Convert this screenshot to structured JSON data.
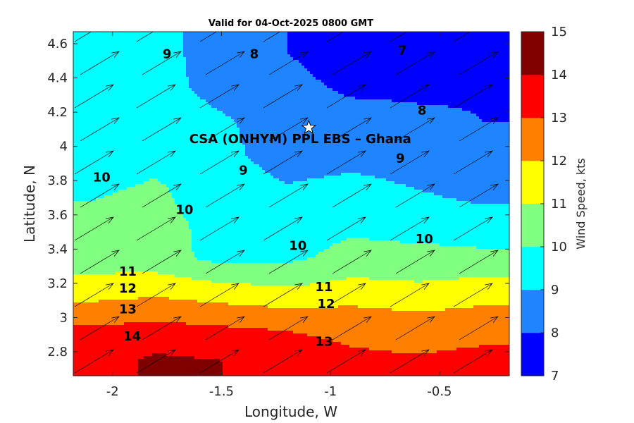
{
  "chart_data": {
    "type": "heatmap",
    "subtype": "filled-contour-with-wind-vectors",
    "title": "Valid for 04-Oct-2025 0800 GMT",
    "xlabel": "Longitude, W",
    "ylabel": "Latitude, N",
    "xlim": [
      -2.18,
      -0.18
    ],
    "ylim": [
      2.66,
      4.67
    ],
    "xticks": [
      -2,
      -1.5,
      -1,
      -0.5
    ],
    "xtick_labels": [
      "-2",
      "-1.5",
      "-1",
      "-0.5"
    ],
    "yticks": [
      2.8,
      3,
      3.2,
      3.4,
      3.6,
      3.8,
      4,
      4.2,
      4.4,
      4.6
    ],
    "ytick_labels": [
      "2.8",
      "3",
      "3.2",
      "3.4",
      "3.6",
      "3.8",
      "4",
      "4.2",
      "4.4",
      "4.6"
    ],
    "grid": false,
    "colorbar": {
      "label": "Wind Speed, kts",
      "position": "right",
      "levels": [
        7,
        8,
        9,
        10,
        11,
        12,
        13,
        14,
        15
      ],
      "level_labels": [
        "7",
        "8",
        "9",
        "10",
        "11",
        "12",
        "13",
        "14",
        "15"
      ],
      "colors": [
        "#0000ff",
        "#1e84ff",
        "#00ffff",
        "#80ff80",
        "#ffff00",
        "#ff8000",
        "#ff0000",
        "#800000"
      ]
    },
    "contour_labels": [
      {
        "text": "7",
        "x": -0.67,
        "y": 4.56
      },
      {
        "text": "8",
        "x": -1.35,
        "y": 4.54
      },
      {
        "text": "8",
        "x": -0.58,
        "y": 4.21
      },
      {
        "text": "9",
        "x": -1.75,
        "y": 4.54
      },
      {
        "text": "9",
        "x": -1.4,
        "y": 3.86
      },
      {
        "text": "9",
        "x": -0.68,
        "y": 3.93
      },
      {
        "text": "10",
        "x": -2.05,
        "y": 3.82
      },
      {
        "text": "10",
        "x": -1.67,
        "y": 3.63
      },
      {
        "text": "10",
        "x": -1.15,
        "y": 3.42
      },
      {
        "text": "10",
        "x": -0.57,
        "y": 3.46
      },
      {
        "text": "11",
        "x": -1.93,
        "y": 3.27
      },
      {
        "text": "11",
        "x": -1.03,
        "y": 3.18
      },
      {
        "text": "12",
        "x": -1.93,
        "y": 3.17
      },
      {
        "text": "12",
        "x": -1.02,
        "y": 3.08
      },
      {
        "text": "13",
        "x": -1.93,
        "y": 3.05
      },
      {
        "text": "13",
        "x": -1.03,
        "y": 2.86
      },
      {
        "text": "14",
        "x": -1.91,
        "y": 2.89
      }
    ],
    "site": {
      "name": "CSA (ONHYM) PPL EBS  – Ghana",
      "lon": -1.1,
      "lat": 4.11
    },
    "wind_direction": "toward north-east (from south-west)",
    "speed_grid": {
      "lon": [
        -2.1,
        -1.8,
        -1.5,
        -1.2,
        -0.9,
        -0.6,
        -0.3
      ],
      "lat": [
        2.75,
        2.95,
        3.15,
        3.35,
        3.55,
        3.75,
        3.95,
        4.15,
        4.35,
        4.55
      ],
      "values": [
        [
          13.5,
          14.2,
          14.0,
          13.6,
          13.2,
          13.1,
          13.3
        ],
        [
          13.0,
          13.2,
          13.0,
          12.9,
          12.7,
          12.5,
          12.6
        ],
        [
          11.6,
          11.8,
          11.5,
          11.2,
          11.5,
          11.3,
          11.6
        ],
        [
          10.5,
          10.4,
          9.7,
          9.8,
          10.3,
          10.3,
          10.2
        ],
        [
          10.2,
          10.2,
          9.8,
          9.6,
          9.8,
          9.6,
          9.5
        ],
        [
          9.9,
          10.1,
          9.6,
          9.1,
          9.3,
          9.0,
          8.6
        ],
        [
          9.6,
          9.8,
          9.3,
          8.5,
          8.7,
          8.5,
          8.3
        ],
        [
          9.3,
          9.5,
          9.1,
          8.6,
          8.4,
          8.2,
          8.0
        ],
        [
          9.3,
          9.3,
          8.7,
          8.3,
          7.8,
          7.8,
          7.9
        ],
        [
          9.3,
          9.3,
          8.6,
          8.0,
          7.5,
          7.4,
          7.3
        ]
      ]
    }
  }
}
